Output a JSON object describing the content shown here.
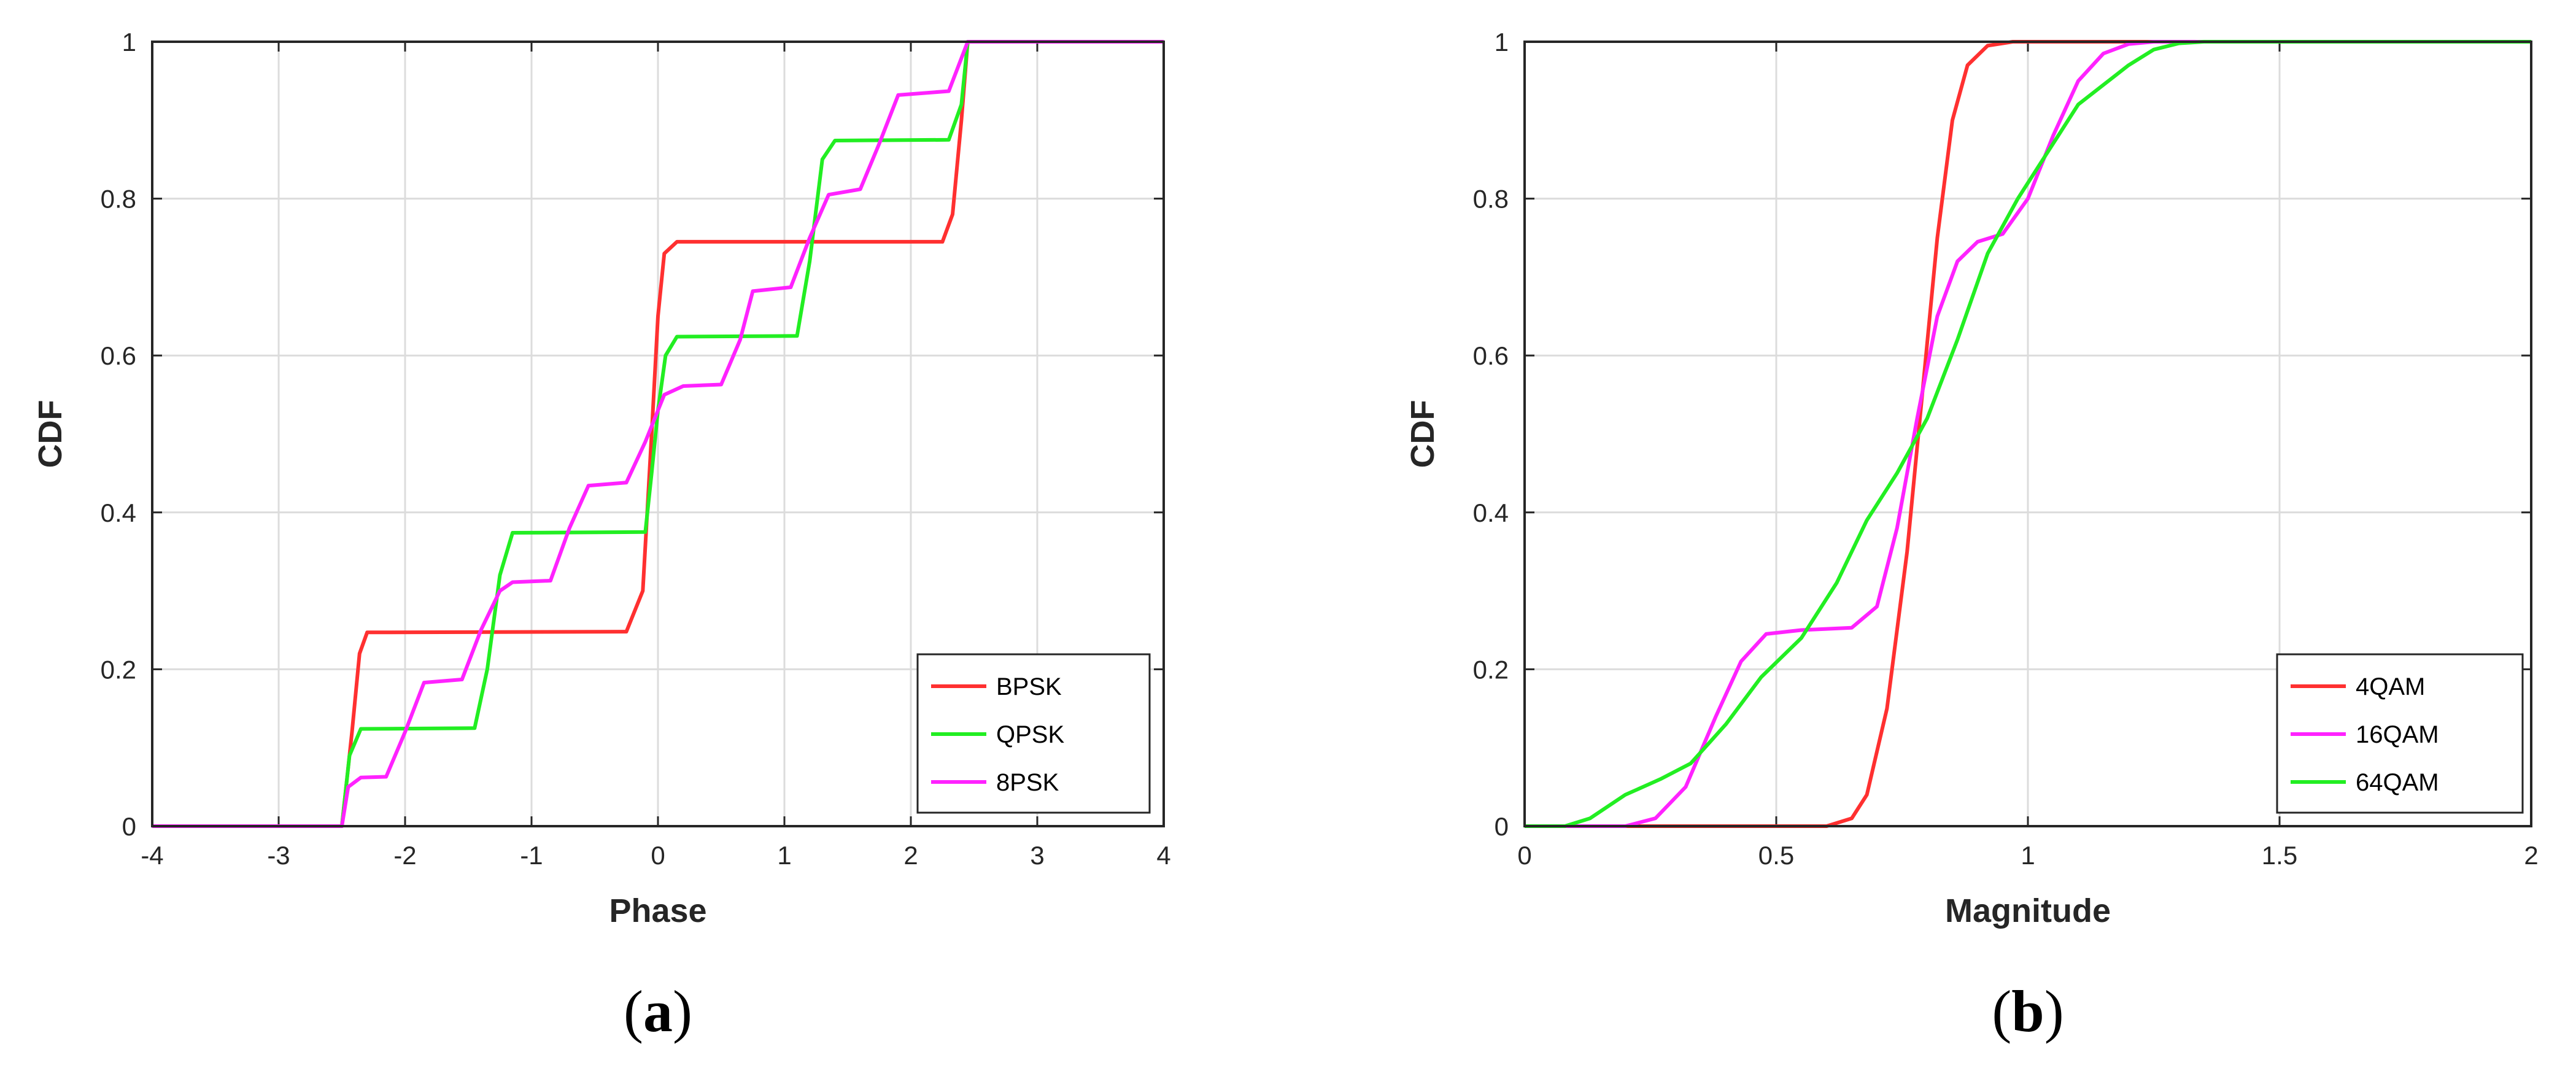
{
  "chart_data": [
    {
      "type": "line",
      "panel_label": "(a)",
      "panel_letter": "a",
      "xlabel": "Phase",
      "ylabel": "CDF",
      "xlim": [
        -4,
        4
      ],
      "ylim": [
        0,
        1
      ],
      "xticks": [
        "-4",
        "-3",
        "-2",
        "-1",
        "0",
        "1",
        "2",
        "3",
        "4"
      ],
      "yticks": [
        "0",
        "0.2",
        "0.4",
        "0.6",
        "0.8",
        "1"
      ],
      "grid": true,
      "legend_position": "bottom-right",
      "series": [
        {
          "name": "BPSK",
          "color": "#ff3030",
          "points": [
            [
              -4,
              0
            ],
            [
              -2.5,
              0
            ],
            [
              -2.42,
              0.12
            ],
            [
              -2.36,
              0.22
            ],
            [
              -2.3,
              0.247
            ],
            [
              -0.25,
              0.248
            ],
            [
              -0.12,
              0.3
            ],
            [
              -0.05,
              0.5
            ],
            [
              0.0,
              0.65
            ],
            [
              0.05,
              0.73
            ],
            [
              0.15,
              0.745
            ],
            [
              2.25,
              0.745
            ],
            [
              2.33,
              0.78
            ],
            [
              2.4,
              0.9
            ],
            [
              2.45,
              1.0
            ],
            [
              4,
              1.0
            ]
          ]
        },
        {
          "name": "QPSK",
          "color": "#22ee22",
          "points": [
            [
              -4,
              0
            ],
            [
              -2.5,
              0
            ],
            [
              -2.44,
              0.09
            ],
            [
              -2.35,
              0.124
            ],
            [
              -1.45,
              0.125
            ],
            [
              -1.35,
              0.2
            ],
            [
              -1.25,
              0.32
            ],
            [
              -1.15,
              0.374
            ],
            [
              -0.1,
              0.375
            ],
            [
              -0.05,
              0.45
            ],
            [
              0.0,
              0.53
            ],
            [
              0.06,
              0.6
            ],
            [
              0.15,
              0.624
            ],
            [
              1.1,
              0.625
            ],
            [
              1.2,
              0.72
            ],
            [
              1.3,
              0.85
            ],
            [
              1.4,
              0.874
            ],
            [
              2.3,
              0.875
            ],
            [
              2.4,
              0.92
            ],
            [
              2.45,
              1.0
            ],
            [
              4,
              1.0
            ]
          ]
        },
        {
          "name": "8PSK",
          "color": "#ff22ff",
          "points": [
            [
              -4,
              0
            ],
            [
              -2.5,
              0
            ],
            [
              -2.45,
              0.05
            ],
            [
              -2.35,
              0.062
            ],
            [
              -2.15,
              0.063
            ],
            [
              -2.0,
              0.12
            ],
            [
              -1.85,
              0.183
            ],
            [
              -1.55,
              0.187
            ],
            [
              -1.4,
              0.25
            ],
            [
              -1.25,
              0.3
            ],
            [
              -1.15,
              0.311
            ],
            [
              -0.85,
              0.313
            ],
            [
              -0.7,
              0.38
            ],
            [
              -0.55,
              0.434
            ],
            [
              -0.25,
              0.438
            ],
            [
              -0.1,
              0.49
            ],
            [
              0.05,
              0.55
            ],
            [
              0.2,
              0.561
            ],
            [
              0.5,
              0.563
            ],
            [
              0.65,
              0.62
            ],
            [
              0.75,
              0.682
            ],
            [
              1.05,
              0.687
            ],
            [
              1.2,
              0.75
            ],
            [
              1.35,
              0.805
            ],
            [
              1.6,
              0.812
            ],
            [
              1.75,
              0.87
            ],
            [
              1.9,
              0.932
            ],
            [
              2.3,
              0.937
            ],
            [
              2.45,
              1.0
            ],
            [
              4,
              1.0
            ]
          ]
        }
      ]
    },
    {
      "type": "line",
      "panel_label": "(b)",
      "panel_letter": "b",
      "xlabel": "Magnitude",
      "ylabel": "CDF",
      "xlim": [
        0,
        2
      ],
      "ylim": [
        0,
        1
      ],
      "xticks": [
        "0",
        "0.5",
        "1",
        "1.5",
        "2"
      ],
      "yticks": [
        "0",
        "0.2",
        "0.4",
        "0.6",
        "0.8",
        "1"
      ],
      "grid": true,
      "legend_position": "bottom-right",
      "series": [
        {
          "name": "4QAM",
          "color": "#ff3030",
          "points": [
            [
              0,
              0
            ],
            [
              0.6,
              0
            ],
            [
              0.65,
              0.01
            ],
            [
              0.68,
              0.04
            ],
            [
              0.72,
              0.15
            ],
            [
              0.76,
              0.35
            ],
            [
              0.79,
              0.55
            ],
            [
              0.82,
              0.75
            ],
            [
              0.85,
              0.9
            ],
            [
              0.88,
              0.97
            ],
            [
              0.92,
              0.995
            ],
            [
              0.97,
              1.0
            ],
            [
              2,
              1.0
            ]
          ]
        },
        {
          "name": "16QAM",
          "color": "#ff22ff",
          "points": [
            [
              0,
              0
            ],
            [
              0.2,
              0
            ],
            [
              0.26,
              0.01
            ],
            [
              0.32,
              0.05
            ],
            [
              0.38,
              0.14
            ],
            [
              0.43,
              0.21
            ],
            [
              0.48,
              0.245
            ],
            [
              0.55,
              0.25
            ],
            [
              0.65,
              0.253
            ],
            [
              0.7,
              0.28
            ],
            [
              0.74,
              0.38
            ],
            [
              0.78,
              0.52
            ],
            [
              0.82,
              0.65
            ],
            [
              0.86,
              0.72
            ],
            [
              0.9,
              0.745
            ],
            [
              0.95,
              0.755
            ],
            [
              1.0,
              0.8
            ],
            [
              1.05,
              0.88
            ],
            [
              1.1,
              0.95
            ],
            [
              1.15,
              0.985
            ],
            [
              1.2,
              0.997
            ],
            [
              1.25,
              1.0
            ],
            [
              2,
              1.0
            ]
          ]
        },
        {
          "name": "64QAM",
          "color": "#22ee22",
          "points": [
            [
              0,
              0
            ],
            [
              0.08,
              0.0
            ],
            [
              0.13,
              0.01
            ],
            [
              0.2,
              0.04
            ],
            [
              0.27,
              0.06
            ],
            [
              0.33,
              0.08
            ],
            [
              0.4,
              0.13
            ],
            [
              0.47,
              0.19
            ],
            [
              0.55,
              0.24
            ],
            [
              0.62,
              0.31
            ],
            [
              0.68,
              0.39
            ],
            [
              0.74,
              0.45
            ],
            [
              0.8,
              0.52
            ],
            [
              0.86,
              0.62
            ],
            [
              0.92,
              0.73
            ],
            [
              0.98,
              0.8
            ],
            [
              1.05,
              0.87
            ],
            [
              1.1,
              0.92
            ],
            [
              1.15,
              0.945
            ],
            [
              1.2,
              0.97
            ],
            [
              1.25,
              0.99
            ],
            [
              1.3,
              0.998
            ],
            [
              1.35,
              1.0
            ],
            [
              2,
              1.0
            ]
          ]
        }
      ]
    }
  ]
}
